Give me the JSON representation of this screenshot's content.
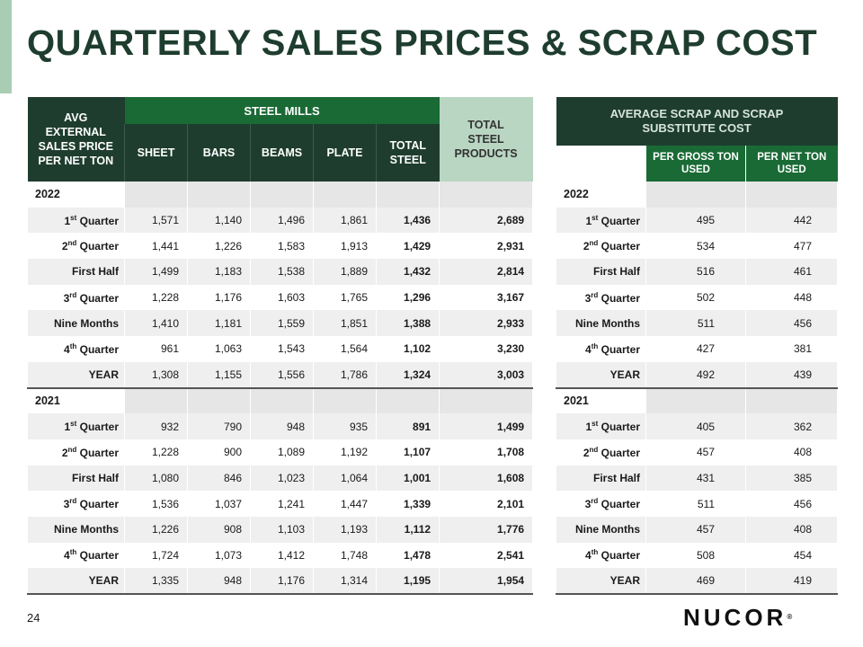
{
  "title": "QUARTERLY SALES PRICES & SCRAP COST",
  "page_number": "24",
  "logo": {
    "text": "NUCOR",
    "reg": "®"
  },
  "left_table": {
    "corner_header": "AVG EXTERNAL SALES PRICE PER NET TON",
    "group_header": "STEEL MILLS",
    "columns": [
      "SHEET",
      "BARS",
      "BEAMS",
      "PLATE",
      "TOTAL STEEL"
    ],
    "total_header": "TOTAL STEEL PRODUCTS",
    "sections": [
      {
        "year": "2022",
        "rows": [
          {
            "label": "Quarter",
            "prefix": "1",
            "sup": "st",
            "values": [
              "1,571",
              "1,140",
              "1,496",
              "1,861",
              "1,436",
              "2,689"
            ]
          },
          {
            "label": "Quarter",
            "prefix": "2",
            "sup": "nd",
            "values": [
              "1,441",
              "1,226",
              "1,583",
              "1,913",
              "1,429",
              "2,931"
            ]
          },
          {
            "label": "First Half",
            "prefix": "",
            "sup": "",
            "values": [
              "1,499",
              "1,183",
              "1,538",
              "1,889",
              "1,432",
              "2,814"
            ]
          },
          {
            "label": "Quarter",
            "prefix": "3",
            "sup": "rd",
            "values": [
              "1,228",
              "1,176",
              "1,603",
              "1,765",
              "1,296",
              "3,167"
            ]
          },
          {
            "label": "Nine Months",
            "prefix": "",
            "sup": "",
            "values": [
              "1,410",
              "1,181",
              "1,559",
              "1,851",
              "1,388",
              "2,933"
            ]
          },
          {
            "label": "Quarter",
            "prefix": "4",
            "sup": "th",
            "values": [
              "961",
              "1,063",
              "1,543",
              "1,564",
              "1,102",
              "3,230"
            ]
          },
          {
            "label": "YEAR",
            "prefix": "",
            "sup": "",
            "values": [
              "1,308",
              "1,155",
              "1,556",
              "1,786",
              "1,324",
              "3,003"
            ]
          }
        ]
      },
      {
        "year": "2021",
        "rows": [
          {
            "label": "Quarter",
            "prefix": "1",
            "sup": "st",
            "values": [
              "932",
              "790",
              "948",
              "935",
              "891",
              "1,499"
            ]
          },
          {
            "label": "Quarter",
            "prefix": "2",
            "sup": "nd",
            "values": [
              "1,228",
              "900",
              "1,089",
              "1,192",
              "1,107",
              "1,708"
            ]
          },
          {
            "label": "First Half",
            "prefix": "",
            "sup": "",
            "values": [
              "1,080",
              "846",
              "1,023",
              "1,064",
              "1,001",
              "1,608"
            ]
          },
          {
            "label": "Quarter",
            "prefix": "3",
            "sup": "rd",
            "values": [
              "1,536",
              "1,037",
              "1,241",
              "1,447",
              "1,339",
              "2,101"
            ]
          },
          {
            "label": "Nine Months",
            "prefix": "",
            "sup": "",
            "values": [
              "1,226",
              "908",
              "1,103",
              "1,193",
              "1,112",
              "1,776"
            ]
          },
          {
            "label": "Quarter",
            "prefix": "4",
            "sup": "th",
            "values": [
              "1,724",
              "1,073",
              "1,412",
              "1,748",
              "1,478",
              "2,541"
            ]
          },
          {
            "label": "YEAR",
            "prefix": "",
            "sup": "",
            "values": [
              "1,335",
              "948",
              "1,176",
              "1,314",
              "1,195",
              "1,954"
            ]
          }
        ]
      }
    ]
  },
  "right_table": {
    "header": "AVERAGE SCRAP AND SCRAP SUBSTITUTE COST",
    "columns": [
      "PER GROSS TON USED",
      "PER NET TON USED"
    ],
    "sections": [
      {
        "year": "2022",
        "rows": [
          {
            "label": "Quarter",
            "prefix": "1",
            "sup": "st",
            "values": [
              "495",
              "442"
            ]
          },
          {
            "label": "Quarter",
            "prefix": "2",
            "sup": "nd",
            "values": [
              "534",
              "477"
            ]
          },
          {
            "label": "First Half",
            "prefix": "",
            "sup": "",
            "values": [
              "516",
              "461"
            ]
          },
          {
            "label": "Quarter",
            "prefix": "3",
            "sup": "rd",
            "values": [
              "502",
              "448"
            ]
          },
          {
            "label": "Nine Months",
            "prefix": "",
            "sup": "",
            "values": [
              "511",
              "456"
            ]
          },
          {
            "label": "Quarter",
            "prefix": "4",
            "sup": "th",
            "values": [
              "427",
              "381"
            ]
          },
          {
            "label": "YEAR",
            "prefix": "",
            "sup": "",
            "values": [
              "492",
              "439"
            ]
          }
        ]
      },
      {
        "year": "2021",
        "rows": [
          {
            "label": "Quarter",
            "prefix": "1",
            "sup": "st",
            "values": [
              "405",
              "362"
            ]
          },
          {
            "label": "Quarter",
            "prefix": "2",
            "sup": "nd",
            "values": [
              "457",
              "408"
            ]
          },
          {
            "label": "First Half",
            "prefix": "",
            "sup": "",
            "values": [
              "431",
              "385"
            ]
          },
          {
            "label": "Quarter",
            "prefix": "3",
            "sup": "rd",
            "values": [
              "511",
              "456"
            ]
          },
          {
            "label": "Nine Months",
            "prefix": "",
            "sup": "",
            "values": [
              "457",
              "408"
            ]
          },
          {
            "label": "Quarter",
            "prefix": "4",
            "sup": "th",
            "values": [
              "508",
              "454"
            ]
          },
          {
            "label": "YEAR",
            "prefix": "",
            "sup": "",
            "values": [
              "469",
              "419"
            ]
          }
        ]
      }
    ]
  }
}
